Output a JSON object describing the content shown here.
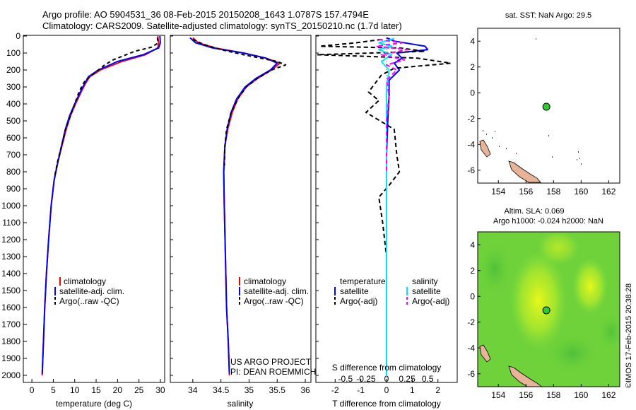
{
  "header": {
    "line1": "Argo profile: AO 5904531_36 08-Feb-2015 20150208_1643 1.0787S 157.4794E",
    "line2": "Climatology: CARS2009. Satellite-adjusted climatology: synTS_20150210.nc (1.7d later)"
  },
  "depth_ticks": [
    "0",
    "100",
    "200",
    "300",
    "400",
    "500",
    "600",
    "700",
    "800",
    "900",
    "1000",
    "1100",
    "1200",
    "1300",
    "1400",
    "1500",
    "1600",
    "1700",
    "1800",
    "1900",
    "2000"
  ],
  "colors": {
    "climatology": "#ff0000",
    "satellite": "#0000ff",
    "argo": "#000000",
    "salinity_satellite": "#00e5ff",
    "salinity_argo": "#ff00ff",
    "land": "#e8b497",
    "float_marker": "#2ecc2e",
    "sla_field": "#6fd23a"
  },
  "chart_data": [
    {
      "type": "line",
      "panel": "temperature",
      "xlabel": "temperature (deg C)",
      "x_ticks": [
        "0",
        "5",
        "10",
        "15",
        "20",
        "25",
        "30"
      ],
      "xlim": [
        -2,
        31
      ],
      "ylim": [
        2050,
        0
      ],
      "legend": [
        "climatology",
        "satellite-adj. clim.",
        "Argo(..raw -QC)"
      ],
      "series": [
        {
          "name": "climatology",
          "points": [
            [
              29.4,
              0
            ],
            [
              29.6,
              40
            ],
            [
              29.4,
              70
            ],
            [
              26.5,
              110
            ],
            [
              21,
              150
            ],
            [
              16,
              200
            ],
            [
              13.5,
              240
            ],
            [
              12.5,
              280
            ],
            [
              11.5,
              330
            ],
            [
              10.2,
              400
            ],
            [
              9,
              470
            ],
            [
              8,
              550
            ],
            [
              7,
              650
            ],
            [
              6,
              750
            ],
            [
              5.2,
              850
            ],
            [
              4.5,
              1000
            ],
            [
              3.9,
              1200
            ],
            [
              3.4,
              1400
            ],
            [
              3,
              1600
            ],
            [
              2.7,
              1800
            ],
            [
              2.4,
              2000
            ]
          ]
        },
        {
          "name": "satellite-adj. clim.",
          "points": [
            [
              29.9,
              0
            ],
            [
              30.0,
              40
            ],
            [
              29.6,
              70
            ],
            [
              26,
              110
            ],
            [
              20,
              150
            ],
            [
              15.5,
              200
            ],
            [
              13.2,
              240
            ],
            [
              12.3,
              280
            ],
            [
              11.3,
              330
            ],
            [
              10,
              400
            ],
            [
              8.8,
              470
            ],
            [
              7.8,
              550
            ],
            [
              6.9,
              650
            ],
            [
              6,
              750
            ],
            [
              5.2,
              850
            ],
            [
              4.5,
              1000
            ],
            [
              3.9,
              1200
            ],
            [
              3.4,
              1400
            ],
            [
              3,
              1600
            ],
            [
              2.7,
              1800
            ],
            [
              2.4,
              1990
            ]
          ]
        },
        {
          "name": "Argo(..raw -QC)",
          "points": [
            [
              29.3,
              10
            ],
            [
              29.5,
              40
            ],
            [
              28,
              65
            ],
            [
              24,
              90
            ],
            [
              22,
              110
            ],
            [
              19,
              140
            ],
            [
              17,
              170
            ],
            [
              15.5,
              200
            ],
            [
              14,
              230
            ],
            [
              12.5,
              260
            ],
            [
              11.8,
              290
            ],
            [
              11,
              330
            ],
            [
              10,
              400
            ],
            [
              9,
              470
            ],
            [
              8,
              540
            ],
            [
              7,
              640
            ],
            [
              6,
              740
            ],
            [
              5.3,
              830
            ]
          ]
        }
      ]
    },
    {
      "type": "line",
      "panel": "salinity",
      "xlabel": "salinity",
      "x_ticks": [
        "34",
        "34.5",
        "35",
        "35.5",
        "36"
      ],
      "xlim": [
        33.6,
        36.1
      ],
      "ylim": [
        2050,
        0
      ],
      "legend": [
        "climatology",
        "satellite-adj. clim.",
        "Argo(..raw -QC)"
      ],
      "annotations": [
        "US ARGO PROJECT",
        "PI: DEAN ROEMMICH"
      ],
      "series": [
        {
          "name": "climatology",
          "points": [
            [
              34.0,
              10
            ],
            [
              34.1,
              40
            ],
            [
              34.4,
              70
            ],
            [
              34.9,
              100
            ],
            [
              35.3,
              130
            ],
            [
              35.55,
              160
            ],
            [
              35.4,
              200
            ],
            [
              35.15,
              250
            ],
            [
              34.95,
              300
            ],
            [
              34.8,
              370
            ],
            [
              34.7,
              450
            ],
            [
              34.62,
              550
            ],
            [
              34.57,
              650
            ],
            [
              34.55,
              800
            ],
            [
              34.56,
              1000
            ],
            [
              34.58,
              1300
            ],
            [
              34.6,
              1600
            ],
            [
              34.63,
              1800
            ],
            [
              34.65,
              2000
            ]
          ]
        },
        {
          "name": "satellite-adj. clim.",
          "points": [
            [
              33.95,
              10
            ],
            [
              34.05,
              40
            ],
            [
              34.35,
              70
            ],
            [
              34.9,
              100
            ],
            [
              35.3,
              130
            ],
            [
              35.5,
              160
            ],
            [
              35.38,
              200
            ],
            [
              35.12,
              250
            ],
            [
              34.93,
              300
            ],
            [
              34.78,
              370
            ],
            [
              34.68,
              450
            ],
            [
              34.61,
              550
            ],
            [
              34.57,
              650
            ],
            [
              34.55,
              800
            ],
            [
              34.56,
              1000
            ],
            [
              34.58,
              1300
            ],
            [
              34.6,
              1600
            ],
            [
              34.63,
              1800
            ],
            [
              34.65,
              1990
            ]
          ]
        },
        {
          "name": "Argo(..raw -QC)",
          "points": [
            [
              34.0,
              20
            ],
            [
              34.2,
              50
            ],
            [
              34.5,
              80
            ],
            [
              34.9,
              110
            ],
            [
              35.2,
              130
            ],
            [
              35.5,
              150
            ],
            [
              35.65,
              170
            ],
            [
              35.4,
              200
            ],
            [
              35.15,
              250
            ],
            [
              34.95,
              300
            ],
            [
              34.8,
              370
            ],
            [
              34.68,
              450
            ],
            [
              34.6,
              550
            ],
            [
              34.57,
              650
            ],
            [
              34.56,
              780
            ]
          ]
        }
      ]
    },
    {
      "type": "line",
      "panel": "difference",
      "xlabel": "T difference from climatology",
      "top_axis_label": "S difference from climatology",
      "x_ticks": [
        "-2",
        "-1",
        "0",
        "1",
        "2"
      ],
      "s_ticks": [
        "-0.5",
        "-0.25",
        "0",
        "0.25",
        "0.5"
      ],
      "xlim": [
        -2.75,
        2.75
      ],
      "ylim": [
        2050,
        0
      ],
      "legend_left_title": "temperature",
      "legend_right_title": "salinity",
      "legend_left": [
        "satellite",
        "Argo(-adj)"
      ],
      "legend_right": [
        "satellite",
        "Argo(-adj)"
      ],
      "series": [
        {
          "name": "temperature satellite",
          "points": [
            [
              0,
              10
            ],
            [
              0.3,
              30
            ],
            [
              1.5,
              60
            ],
            [
              1.6,
              80
            ],
            [
              0.4,
              100
            ],
            [
              0.6,
              130
            ],
            [
              0.3,
              160
            ],
            [
              0.5,
              200
            ],
            [
              0.1,
              260
            ],
            [
              0.1,
              350
            ],
            [
              0.05,
              500
            ],
            [
              0,
              700
            ],
            [
              0,
              1000
            ],
            [
              0,
              1500
            ],
            [
              0,
              2000
            ]
          ]
        },
        {
          "name": "temperature Argo(-adj)",
          "points": [
            [
              -0.2,
              20
            ],
            [
              -1.2,
              40
            ],
            [
              -2.6,
              60
            ],
            [
              0.5,
              70
            ],
            [
              1.5,
              90
            ],
            [
              -2.7,
              110
            ],
            [
              1.2,
              130
            ],
            [
              2.5,
              160
            ],
            [
              0.3,
              190
            ],
            [
              -0.2,
              230
            ],
            [
              -0.7,
              330
            ],
            [
              -0.3,
              380
            ],
            [
              -0.8,
              450
            ],
            [
              0.3,
              550
            ],
            [
              0.4,
              700
            ],
            [
              0.5,
              800
            ],
            [
              0.1,
              880
            ],
            [
              -0.3,
              950
            ],
            [
              -0.15,
              1100
            ],
            [
              0,
              1300
            ]
          ]
        },
        {
          "name": "salinity satellite",
          "points": [
            [
              0.3,
              15
            ],
            [
              -0.3,
              40
            ],
            [
              0.2,
              60
            ],
            [
              -0.3,
              80
            ],
            [
              0.2,
              110
            ],
            [
              -0.2,
              150
            ],
            [
              0.1,
              200
            ],
            [
              0,
              300
            ],
            [
              0,
              500
            ],
            [
              0,
              1000
            ],
            [
              0,
              2000
            ]
          ]
        },
        {
          "name": "salinity Argo(-adj)",
          "points": [
            [
              -0.3,
              20
            ],
            [
              0.6,
              40
            ],
            [
              -0.4,
              60
            ],
            [
              0.8,
              80
            ],
            [
              -0.2,
              110
            ],
            [
              0.7,
              140
            ],
            [
              0,
              170
            ],
            [
              0.4,
              200
            ],
            [
              0,
              260
            ],
            [
              0.1,
              350
            ],
            [
              0,
              500
            ],
            [
              0,
              800
            ]
          ]
        }
      ]
    },
    {
      "type": "scatter",
      "panel": "map-sst",
      "title": "sat. SST: NaN Argo: 29.5",
      "x_ticks": [
        "154",
        "156",
        "158",
        "160",
        "162"
      ],
      "y_ticks": [
        "4",
        "2",
        "0",
        "-2",
        "-4",
        "-6"
      ],
      "xlim": [
        152.5,
        162.8
      ],
      "ylim": [
        -7,
        5
      ],
      "float_position": {
        "lon": 157.48,
        "lat": -1.08
      }
    },
    {
      "type": "heatmap",
      "panel": "map-sla",
      "title_line1": "Altim. SLA: 0.069",
      "title_line2": "Argo h1000: -0.024 h2000: NaN",
      "x_ticks": [
        "154",
        "156",
        "158",
        "160",
        "162"
      ],
      "y_ticks": [
        "4",
        "2",
        "0",
        "-2",
        "-4",
        "-6"
      ],
      "xlim": [
        152.5,
        162.8
      ],
      "ylim": [
        -7,
        5
      ],
      "float_position": {
        "lon": 157.48,
        "lat": -1.08
      }
    }
  ],
  "credit": "©IMOS 17-Feb-2015 20:38:28"
}
